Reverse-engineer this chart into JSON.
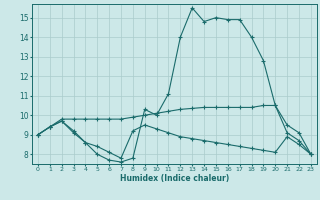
{
  "xlabel": "Humidex (Indice chaleur)",
  "bg_color": "#cce8e8",
  "grid_color": "#aacccc",
  "line_color": "#1a6b6b",
  "xlim": [
    -0.5,
    23.5
  ],
  "ylim": [
    7.5,
    15.7
  ],
  "xticks": [
    0,
    1,
    2,
    3,
    4,
    5,
    6,
    7,
    8,
    9,
    10,
    11,
    12,
    13,
    14,
    15,
    16,
    17,
    18,
    19,
    20,
    21,
    22,
    23
  ],
  "yticks": [
    8,
    9,
    10,
    11,
    12,
    13,
    14,
    15
  ],
  "line1_x": [
    0,
    1,
    2,
    3,
    4,
    5,
    6,
    7,
    8,
    9,
    10,
    11,
    12,
    13,
    14,
    15,
    16,
    17,
    18,
    19,
    20,
    21,
    22,
    23
  ],
  "line1_y": [
    9.0,
    9.4,
    9.7,
    9.1,
    8.6,
    8.0,
    7.7,
    7.6,
    7.8,
    10.3,
    10.0,
    11.1,
    14.0,
    15.5,
    14.8,
    15.0,
    14.9,
    14.9,
    14.0,
    12.8,
    10.5,
    9.1,
    8.7,
    8.0
  ],
  "line2_x": [
    0,
    1,
    2,
    3,
    4,
    5,
    6,
    7,
    8,
    9,
    10,
    11,
    12,
    13,
    14,
    15,
    16,
    17,
    18,
    19,
    20,
    21,
    22,
    23
  ],
  "line2_y": [
    9.0,
    9.4,
    9.8,
    9.8,
    9.8,
    9.8,
    9.8,
    9.8,
    9.9,
    10.0,
    10.1,
    10.2,
    10.3,
    10.35,
    10.4,
    10.4,
    10.4,
    10.4,
    10.4,
    10.5,
    10.5,
    9.5,
    9.1,
    8.0
  ],
  "line3_x": [
    0,
    1,
    2,
    3,
    4,
    5,
    6,
    7,
    8,
    9,
    10,
    11,
    12,
    13,
    14,
    15,
    16,
    17,
    18,
    19,
    20,
    21,
    22,
    23
  ],
  "line3_y": [
    9.0,
    9.4,
    9.7,
    9.2,
    8.6,
    8.4,
    8.1,
    7.8,
    9.2,
    9.5,
    9.3,
    9.1,
    8.9,
    8.8,
    8.7,
    8.6,
    8.5,
    8.4,
    8.3,
    8.2,
    8.1,
    8.9,
    8.5,
    8.0
  ]
}
